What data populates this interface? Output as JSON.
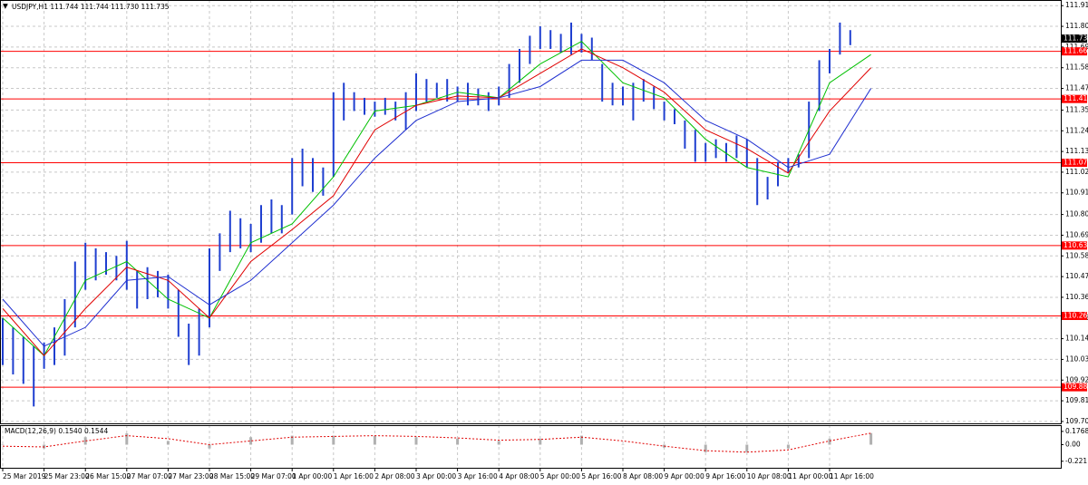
{
  "chart_data": {
    "type": "ohlc",
    "title": "USDJPY,H1 111.744 111.744 111.730 111.735",
    "categories": [
      "25 Mar 2019",
      "25 Mar 23:00",
      "26 Mar 15:00",
      "27 Mar 07:00",
      "27 Mar 23:00",
      "28 Mar 15:00",
      "29 Mar 07:00",
      "1 Apr 00:00",
      "1 Apr 16:00",
      "2 Apr 08:00",
      "3 Apr 00:00",
      "3 Apr 16:00",
      "4 Apr 08:00",
      "5 Apr 00:00",
      "5 Apr 16:00",
      "8 Apr 08:00",
      "9 Apr 00:00",
      "9 Apr 16:00",
      "10 Apr 08:00",
      "11 Apr 00:00",
      "11 Apr 16:00",
      null
    ],
    "bar_color": "#1f3fd0",
    "high": [
      110.25,
      110.2,
      110.15,
      110.1,
      110.12,
      110.2,
      110.35,
      110.55,
      110.65,
      110.62,
      110.6,
      110.58,
      110.66,
      110.5,
      110.52,
      110.5,
      110.48,
      110.4,
      110.22,
      110.3,
      110.62,
      110.7,
      110.82,
      110.78,
      110.75,
      110.85,
      110.88,
      110.85,
      111.1,
      111.15,
      111.1,
      111.05,
      111.45,
      111.5,
      111.45,
      111.42,
      111.4,
      111.42,
      111.4,
      111.45,
      111.55,
      111.52,
      111.5,
      111.52,
      111.48,
      111.5,
      111.47,
      111.45,
      111.48,
      111.6,
      111.68,
      111.75,
      111.8,
      111.78,
      111.76,
      111.82,
      111.76,
      111.74,
      111.6,
      111.5,
      111.48,
      111.5,
      111.52,
      111.48,
      111.4,
      111.36,
      111.3,
      111.25,
      111.18,
      111.2,
      111.18,
      111.22,
      111.2,
      111.1,
      111.0,
      111.08,
      111.1,
      111.12,
      111.4,
      111.62,
      111.68,
      111.82,
      111.78
    ],
    "low": [
      110.0,
      109.95,
      109.9,
      109.78,
      109.98,
      110.0,
      110.05,
      110.2,
      110.4,
      110.45,
      110.48,
      110.45,
      110.4,
      110.3,
      110.35,
      110.36,
      110.3,
      110.15,
      110.0,
      110.05,
      110.2,
      110.5,
      110.6,
      110.62,
      110.6,
      110.65,
      110.7,
      110.7,
      110.8,
      110.95,
      110.92,
      110.9,
      111.0,
      111.3,
      111.35,
      111.33,
      111.32,
      111.33,
      111.3,
      111.25,
      111.35,
      111.4,
      111.42,
      111.4,
      111.4,
      111.38,
      111.38,
      111.35,
      111.38,
      111.42,
      111.5,
      111.6,
      111.68,
      111.68,
      111.66,
      111.65,
      111.66,
      111.62,
      111.4,
      111.38,
      111.38,
      111.3,
      111.4,
      111.36,
      111.3,
      111.28,
      111.15,
      111.08,
      111.08,
      111.1,
      111.08,
      111.1,
      111.05,
      110.85,
      110.88,
      110.95,
      111.02,
      111.05,
      111.1,
      111.35,
      111.55,
      111.65,
      111.7
    ],
    "series": [
      {
        "color": "#00c000",
        "values": [
          110.25,
          110.05,
          110.45,
          110.55,
          110.35,
          110.25,
          110.65,
          110.75,
          111.0,
          111.35,
          111.38,
          111.45,
          111.42,
          111.6,
          111.72,
          111.5,
          111.42,
          111.2,
          111.05,
          111.0,
          111.5,
          111.65
        ]
      },
      {
        "color": "#e00000",
        "values": [
          110.3,
          110.05,
          110.3,
          110.52,
          110.45,
          110.25,
          110.55,
          110.72,
          110.9,
          111.25,
          111.38,
          111.43,
          111.42,
          111.55,
          111.68,
          111.58,
          111.45,
          111.25,
          111.15,
          111.02,
          111.35,
          111.58
        ]
      },
      {
        "color": "#2030d0",
        "values": [
          110.35,
          110.1,
          110.2,
          110.45,
          110.47,
          110.32,
          110.45,
          110.65,
          110.85,
          111.1,
          111.3,
          111.4,
          111.42,
          111.48,
          111.62,
          111.62,
          111.5,
          111.3,
          111.2,
          111.05,
          111.12,
          111.47
        ]
      }
    ],
    "ylim": [
      109.69,
      111.94
    ],
    "yticks": [
      {
        "value": 111.91,
        "label": "111.910"
      },
      {
        "value": 111.8,
        "label": "111.800"
      },
      {
        "value": 111.69,
        "label": "111.690"
      },
      {
        "value": 111.58,
        "label": "111.580"
      },
      {
        "value": 111.47,
        "label": "111.470"
      },
      111.355,
      111.245,
      111.135,
      111.025,
      110.915,
      {
        "value": 110.8,
        "label": "110.800"
      },
      {
        "value": 110.69,
        "label": "110.690"
      },
      {
        "value": 110.58,
        "label": "110.580"
      },
      {
        "value": 110.47,
        "label": "110.470"
      },
      {
        "value": 110.36,
        "label": "110.360"
      },
      {
        "value": 110.25,
        "label": "110.250"
      },
      {
        "value": 110.14,
        "label": "110.140"
      },
      {
        "value": 110.03,
        "label": "110.030"
      },
      {
        "value": 109.92,
        "label": "109.920"
      },
      {
        "value": 109.81,
        "label": "109.810"
      },
      {
        "value": 109.7,
        "label": "109.700"
      }
    ],
    "levels": [
      111.667,
      111.414,
      111.075,
      110.635,
      110.261,
      109.882
    ],
    "level_color": "#ff0000",
    "current_price": 111.735,
    "grid": true,
    "macd": {
      "label": "MACD(12,26,9) 0.1540 0.1544",
      "histogram": [
        0.0,
        -0.05,
        0.1,
        0.15,
        0.05,
        -0.05,
        0.1,
        0.12,
        0.12,
        0.12,
        0.1,
        0.08,
        0.05,
        0.08,
        0.12,
        0.0,
        -0.04,
        -0.1,
        -0.1,
        -0.05,
        0.08,
        0.154
      ],
      "signal": [
        -0.02,
        -0.03,
        0.05,
        0.12,
        0.08,
        0.0,
        0.05,
        0.1,
        0.11,
        0.12,
        0.11,
        0.09,
        0.06,
        0.07,
        0.1,
        0.05,
        -0.02,
        -0.08,
        -0.1,
        -0.07,
        0.05,
        0.154
      ],
      "hist_color": "#b0b0b0",
      "signal_color": "#e00000",
      "ylim": [
        -0.32,
        0.26
      ],
      "yticks": [
        0.1768,
        {
          "value": 0,
          "label": "0.00"
        },
        -0.221
      ]
    }
  }
}
